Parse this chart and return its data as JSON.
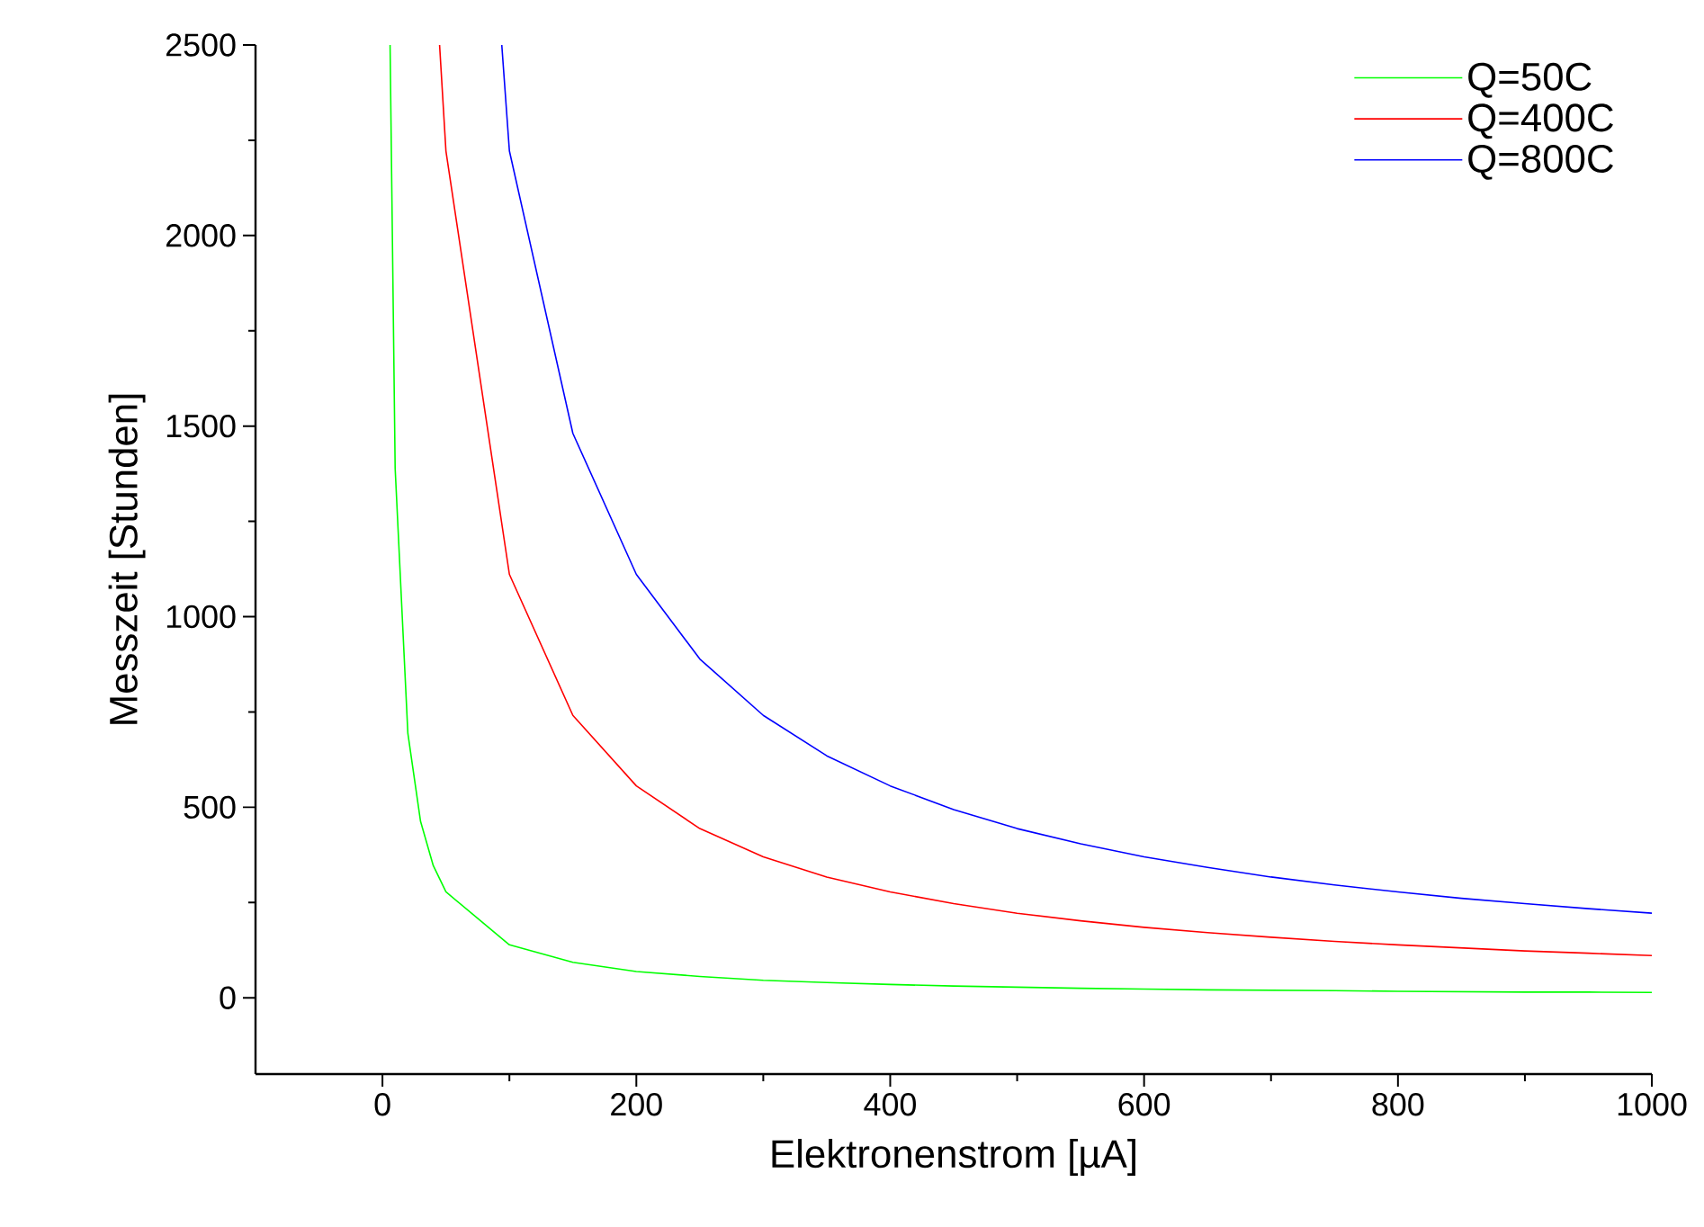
{
  "chart_data": {
    "type": "line",
    "xlabel": "Elektronenstrom [µA]",
    "ylabel": "Messzeit [Stunden]",
    "xlim": [
      -100,
      1000
    ],
    "ylim": [
      -200,
      2500
    ],
    "xticks": [
      0,
      200,
      400,
      600,
      800,
      1000
    ],
    "yticks": [
      0,
      500,
      1000,
      1500,
      2000,
      2500
    ],
    "legend": "top right",
    "series": [
      {
        "name": "Q=50C",
        "color": "#00ff00",
        "x": [
          6,
          10,
          20,
          30,
          40,
          50,
          100,
          150,
          200,
          250,
          300,
          350,
          400,
          450,
          500,
          550,
          600,
          650,
          700,
          750,
          800,
          850,
          900,
          950,
          1000
        ],
        "values": [
          2500,
          1389,
          694,
          463,
          347,
          278,
          139,
          93,
          69,
          56,
          46,
          40,
          35,
          31,
          28,
          25,
          23,
          21,
          20,
          19,
          17,
          16,
          15,
          15,
          14
        ]
      },
      {
        "name": "Q=400C",
        "color": "#ff0000",
        "x": [
          45,
          50,
          100,
          150,
          200,
          250,
          300,
          350,
          400,
          450,
          500,
          550,
          600,
          650,
          700,
          750,
          800,
          850,
          900,
          950,
          1000
        ],
        "values": [
          2500,
          2222,
          1111,
          741,
          556,
          444,
          370,
          317,
          278,
          247,
          222,
          202,
          185,
          171,
          159,
          148,
          139,
          131,
          123,
          117,
          111
        ]
      },
      {
        "name": "Q=800C",
        "color": "#0000ff",
        "x": [
          94,
          100,
          150,
          200,
          250,
          300,
          350,
          400,
          450,
          500,
          550,
          600,
          650,
          700,
          750,
          800,
          850,
          900,
          950,
          1000
        ],
        "values": [
          2500,
          2222,
          1481,
          1111,
          889,
          741,
          635,
          556,
          494,
          444,
          404,
          370,
          342,
          317,
          296,
          278,
          261,
          247,
          234,
          222
        ]
      }
    ]
  }
}
